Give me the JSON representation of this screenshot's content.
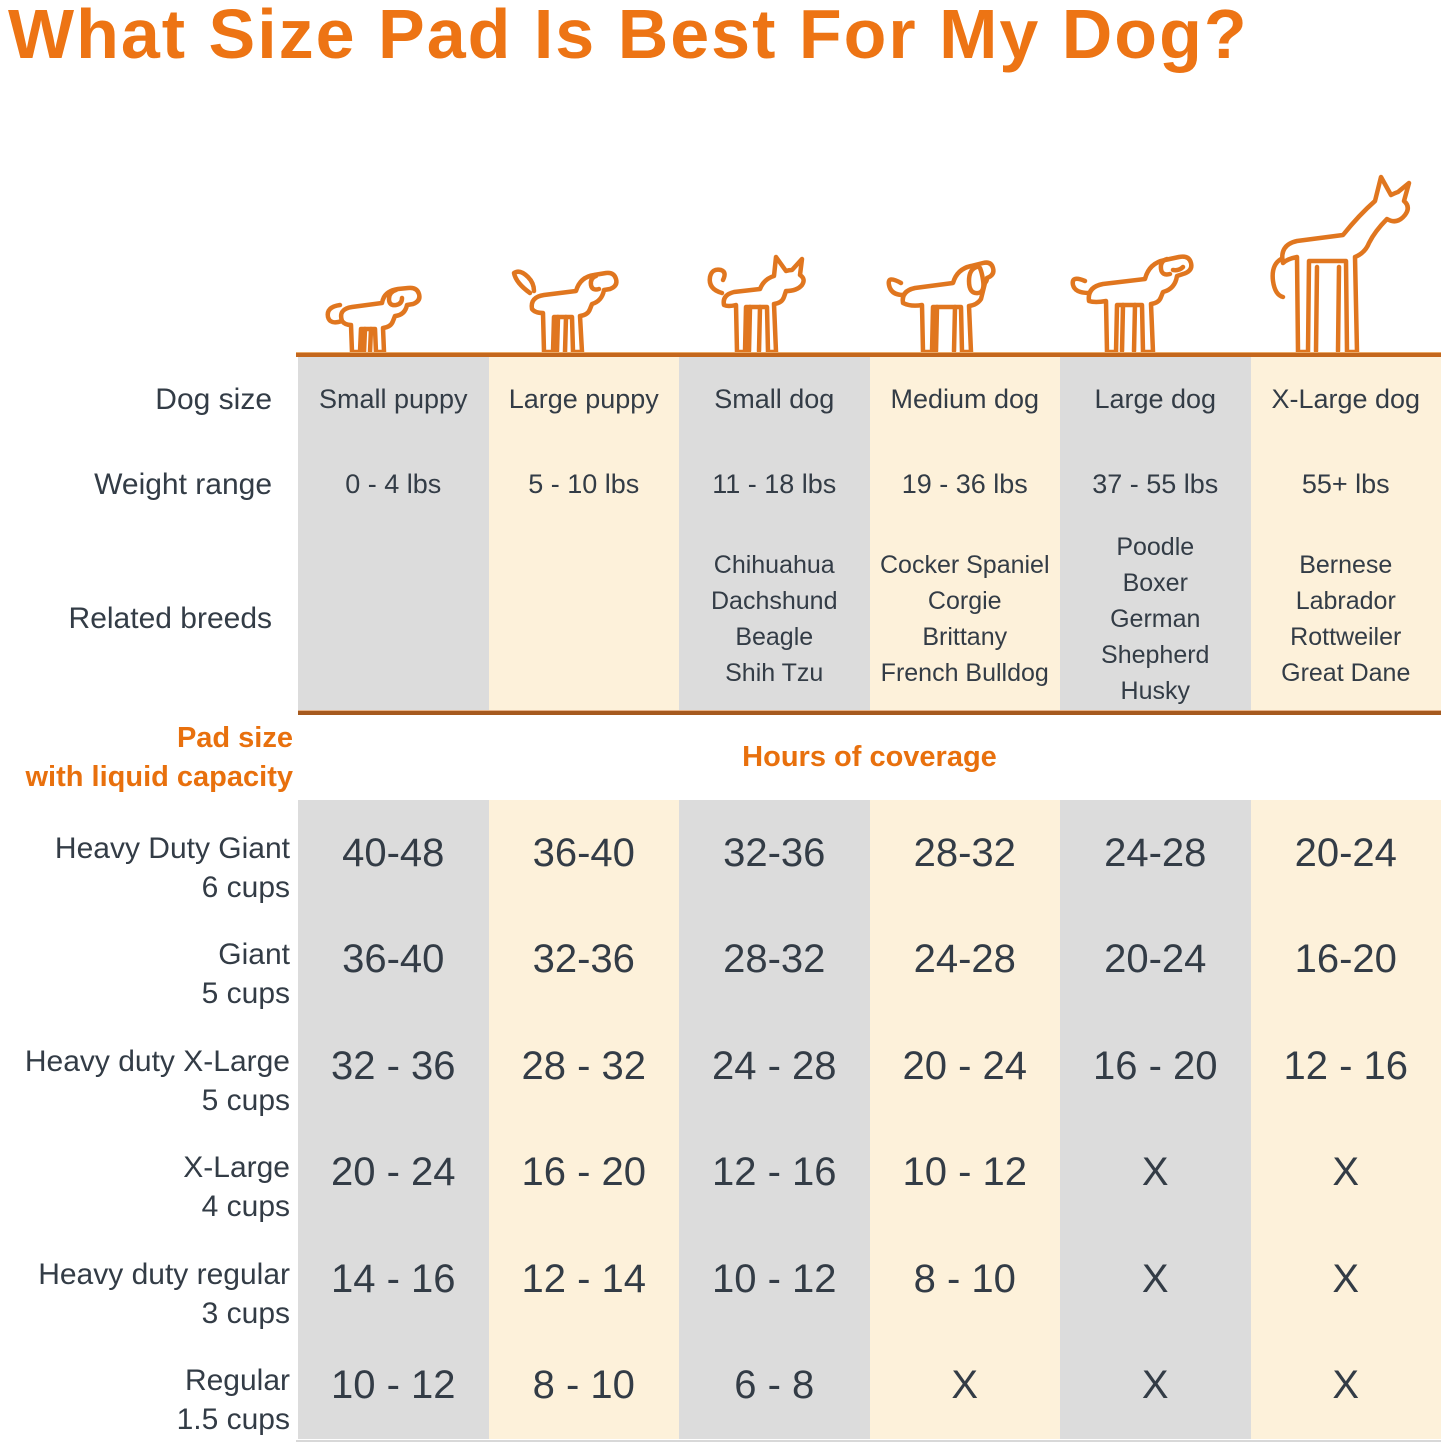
{
  "title": "What Size Pad Is Best For My Dog?",
  "colors": {
    "accent_orange": "#e8700d",
    "title_orange": "#ed7414",
    "dog_outline_orange": "#e0761f",
    "ground_line": "#c4671c",
    "divider_line": "#a65a1e",
    "stripe_gray": "#dcdcdc",
    "stripe_cream": "#fdf1da",
    "text_dark": "#333c46"
  },
  "row_headers": {
    "dog_size": "Dog size",
    "weight_range": "Weight range",
    "related_breeds": "Related breeds"
  },
  "section": {
    "pad_size_line1": "Pad size",
    "pad_size_line2": "with liquid capacity",
    "hours_label": "Hours of coverage"
  },
  "columns": [
    {
      "icon": "small-puppy-icon",
      "label": "Small puppy",
      "weight": "0 - 4 lbs",
      "breeds": []
    },
    {
      "icon": "large-puppy-icon",
      "label": "Large puppy",
      "weight": "5 - 10 lbs",
      "breeds": []
    },
    {
      "icon": "small-dog-icon",
      "label": "Small dog",
      "weight": "11 - 18 lbs",
      "breeds": [
        "Chihuahua",
        "Dachshund",
        "Beagle",
        "Shih Tzu"
      ]
    },
    {
      "icon": "medium-dog-icon",
      "label": "Medium dog",
      "weight": "19 - 36 lbs",
      "breeds": [
        "Cocker Spaniel",
        "Corgie",
        "Brittany",
        "French Bulldog"
      ]
    },
    {
      "icon": "large-dog-icon",
      "label": "Large dog",
      "weight": "37 - 55 lbs",
      "breeds": [
        "Poodle",
        "Boxer",
        "German Shepherd",
        "Husky"
      ]
    },
    {
      "icon": "x-large-dog-icon",
      "label": "X-Large dog",
      "weight": "55+ lbs",
      "breeds": [
        "Bernese",
        "Labrador",
        "Rottweiler",
        "Great Dane"
      ]
    }
  ],
  "pad_rows": [
    {
      "name": "Heavy Duty Giant",
      "capacity": "6 cups",
      "values": [
        "40-48",
        "36-40",
        "32-36",
        "28-32",
        "24-28",
        "20-24"
      ]
    },
    {
      "name": "Giant",
      "capacity": "5 cups",
      "values": [
        "36-40",
        "32-36",
        "28-32",
        "24-28",
        "20-24",
        "16-20"
      ]
    },
    {
      "name": "Heavy duty X-Large",
      "capacity": "5 cups",
      "values": [
        "32 - 36",
        "28 - 32",
        "24 - 28",
        "20 - 24",
        "16 - 20",
        "12 - 16"
      ]
    },
    {
      "name": "X-Large",
      "capacity": "4 cups",
      "values": [
        "20 - 24",
        "16 - 20",
        "12 - 16",
        "10 - 12",
        "X",
        "X"
      ]
    },
    {
      "name": "Heavy duty regular",
      "capacity": "3 cups",
      "values": [
        "14 - 16",
        "12 - 14",
        "10 - 12",
        "8 - 10",
        "X",
        "X"
      ]
    },
    {
      "name": "Regular",
      "capacity": "1.5 cups",
      "values": [
        "10 - 12",
        "8 - 10",
        "6 - 8",
        "X",
        "X",
        "X"
      ]
    }
  ],
  "chart_data": {
    "type": "table",
    "title": "What Size Pad Is Best For My Dog?",
    "columns": [
      "Small puppy",
      "Large puppy",
      "Small dog",
      "Medium dog",
      "Large dog",
      "X-Large dog"
    ],
    "rows": [
      {
        "label": "Weight range",
        "values": [
          "0 - 4 lbs",
          "5 - 10 lbs",
          "11 - 18 lbs",
          "19 - 36 lbs",
          "37 - 55 lbs",
          "55+ lbs"
        ]
      },
      {
        "label": "Related breeds",
        "values": [
          "",
          "",
          "Chihuahua, Dachshund, Beagle, Shih Tzu",
          "Cocker Spaniel, Corgie, Brittany, French Bulldog",
          "Poodle, Boxer, German Shepherd, Husky",
          "Bernese, Labrador, Rottweiler, Great Dane"
        ]
      },
      {
        "label": "Heavy Duty Giant 6 cups (hours of coverage)",
        "values": [
          "40-48",
          "36-40",
          "32-36",
          "28-32",
          "24-28",
          "20-24"
        ]
      },
      {
        "label": "Giant 5 cups (hours of coverage)",
        "values": [
          "36-40",
          "32-36",
          "28-32",
          "24-28",
          "20-24",
          "16-20"
        ]
      },
      {
        "label": "Heavy duty X-Large 5 cups (hours of coverage)",
        "values": [
          "32 - 36",
          "28 - 32",
          "24 - 28",
          "20 - 24",
          "16 - 20",
          "12 - 16"
        ]
      },
      {
        "label": "X-Large 4 cups (hours of coverage)",
        "values": [
          "20 - 24",
          "16 - 20",
          "12 - 16",
          "10 - 12",
          "X",
          "X"
        ]
      },
      {
        "label": "Heavy duty regular 3 cups (hours of coverage)",
        "values": [
          "14 - 16",
          "12 - 14",
          "10 - 12",
          "8 - 10",
          "X",
          "X"
        ]
      },
      {
        "label": "Regular 1.5 cups (hours of coverage)",
        "values": [
          "10 - 12",
          "8 - 10",
          "6 - 8",
          "X",
          "X",
          "X"
        ]
      }
    ]
  }
}
